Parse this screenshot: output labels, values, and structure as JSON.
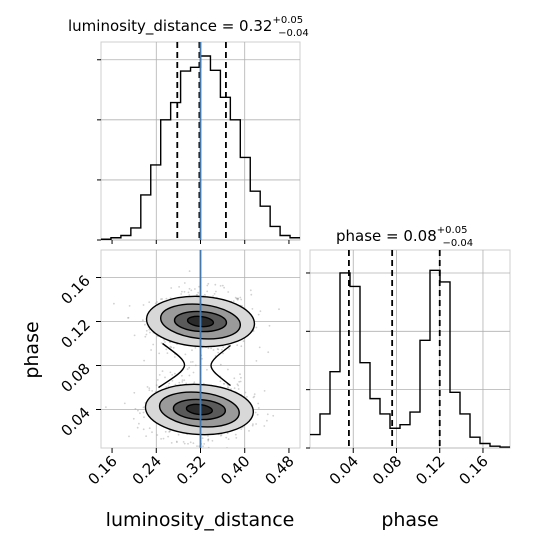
{
  "chart_data": {
    "type": "corner",
    "parameters": [
      "luminosity_distance",
      "phase"
    ],
    "panels": [
      {
        "panel": "luminosity_distance-marginal",
        "type": "histogram",
        "title_prefix": "luminosity_distance = 0.32",
        "title_plus": "+0.05",
        "title_minus": "−0.04",
        "xlim": [
          0.14,
          0.5
        ],
        "bins": [
          0.14,
          0.158,
          0.176,
          0.194,
          0.212,
          0.23,
          0.248,
          0.266,
          0.284,
          0.302,
          0.32,
          0.338,
          0.356,
          0.374,
          0.392,
          0.41,
          0.428,
          0.446,
          0.464,
          0.482,
          0.5
        ],
        "counts": [
          1,
          3,
          6,
          16,
          60,
          100,
          160,
          183,
          225,
          230,
          245,
          226,
          190,
          160,
          110,
          65,
          45,
          18,
          6,
          3
        ],
        "ymax": 245,
        "quantile_lines": [
          0.278,
          0.318,
          0.366
        ],
        "truth": 0.32,
        "grid": true
      },
      {
        "panel": "phase-marginal",
        "type": "histogram",
        "title_prefix": "phase = 0.08",
        "title_plus": "+0.05",
        "title_minus": "−0.04",
        "xlim": [
          0.0,
          0.185
        ],
        "bins": [
          0.0,
          0.00925,
          0.0185,
          0.02775,
          0.037,
          0.04625,
          0.0555,
          0.06475,
          0.074,
          0.08325,
          0.0925,
          0.10175,
          0.111,
          0.12025,
          0.1295,
          0.13875,
          0.148,
          0.15725,
          0.1665,
          0.17575,
          0.185
        ],
        "counts": [
          15,
          38,
          85,
          195,
          180,
          95,
          55,
          38,
          22,
          26,
          40,
          120,
          198,
          185,
          62,
          38,
          12,
          5,
          2,
          1
        ],
        "ymax": 205,
        "quantile_lines": [
          0.036,
          0.076,
          0.12
        ],
        "grid": true,
        "xticks": [
          "0.04",
          "0.08",
          "0.12",
          "0.16"
        ],
        "xlabel": "phase"
      },
      {
        "panel": "joint-2d",
        "type": "scatter+contour",
        "xlim": [
          0.14,
          0.5
        ],
        "ylim": [
          0.005,
          0.185
        ],
        "modes": [
          {
            "x": 0.32,
            "y": 0.12
          },
          {
            "x": 0.318,
            "y": 0.04
          }
        ],
        "truth_x": 0.32,
        "xticks": [
          "0.16",
          "0.24",
          "0.32",
          "0.40",
          "0.48"
        ],
        "yticks": [
          "0.04",
          "0.08",
          "0.12",
          "0.16"
        ],
        "xlabel": "luminosity_distance",
        "ylabel": "phase",
        "grid": true
      }
    ],
    "colors": {
      "truth": "#4477aa",
      "hist": "#000000",
      "grid": "#b0b0b0",
      "points": "#9a9a9a",
      "contour_fill": [
        "#d8d8d8",
        "#9a9a9a",
        "#5a5a5a",
        "#2a2a2a"
      ]
    }
  }
}
